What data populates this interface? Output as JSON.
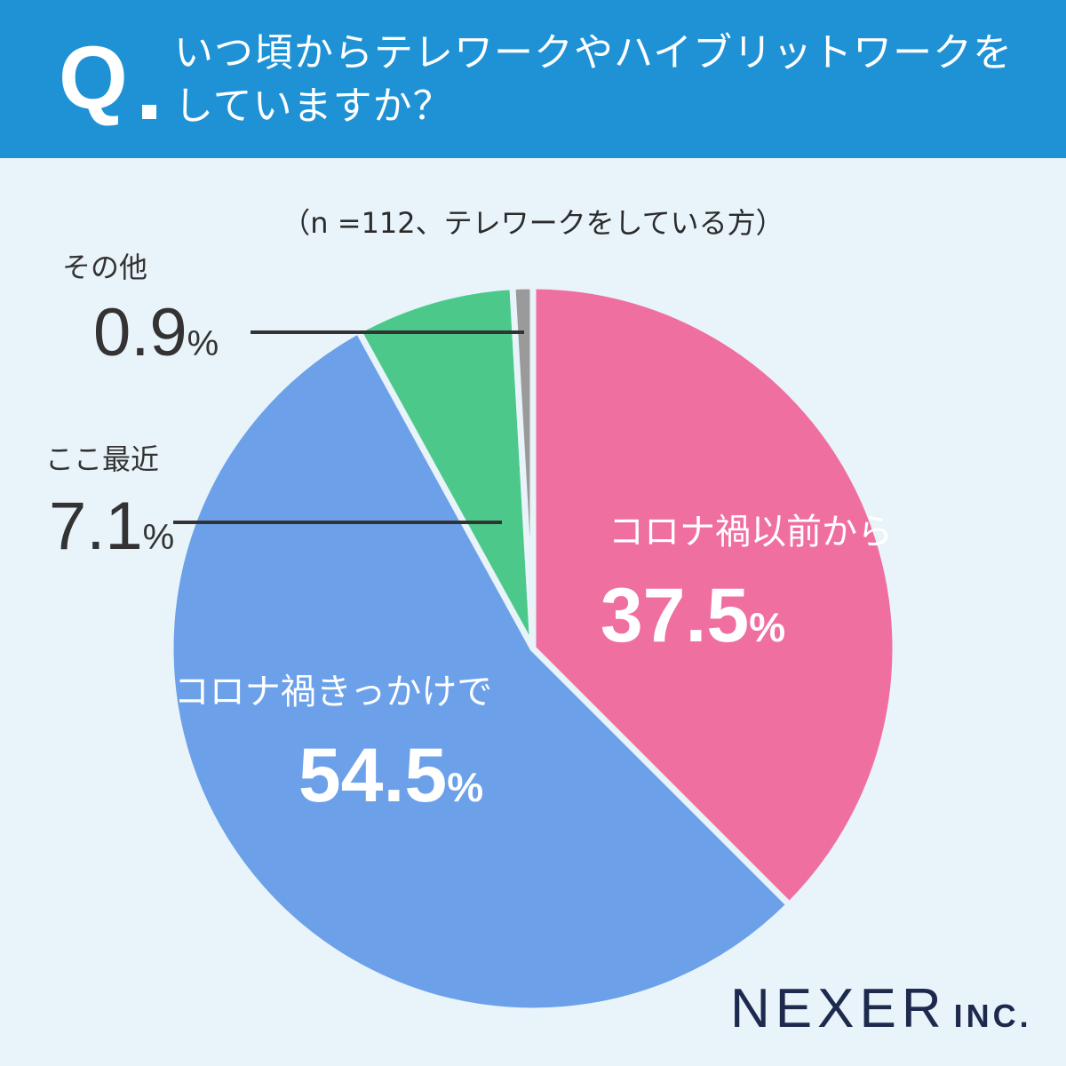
{
  "header": {
    "q_mark": "Q",
    "question_line1": "いつ頃からテレワークやハイブリットワークを",
    "question_line2": "していますか？"
  },
  "note": "（n =112、テレワークをしている方）",
  "chart_data": {
    "type": "pie",
    "title": "いつ頃からテレワークやハイブリットワークをしていますか？",
    "subtitle": "（n =112、テレワークをしている方）",
    "slices": [
      {
        "label": "コロナ禍以前から",
        "value": 37.5,
        "display": "37.5",
        "color": "#ef6fa1",
        "label_style": "inside"
      },
      {
        "label": "コロナ禍きっかけで",
        "value": 54.5,
        "display": "54.5",
        "color": "#6ca1ea",
        "label_style": "inside"
      },
      {
        "label": "ここ最近",
        "value": 7.1,
        "display": "7.1",
        "color": "#4cc98a",
        "label_style": "callout"
      },
      {
        "label": "その他",
        "value": 0.9,
        "display": "0.9",
        "color": "#9a9a9a",
        "label_style": "callout"
      }
    ],
    "unit": "%"
  },
  "logo": {
    "name": "NEXER",
    "suffix": "INC."
  }
}
